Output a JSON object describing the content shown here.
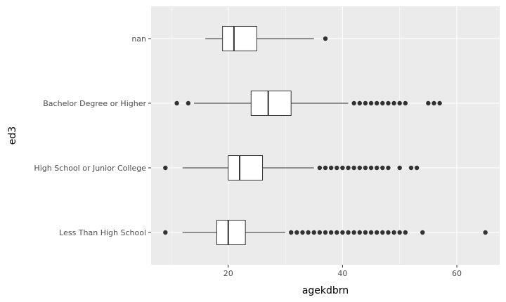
{
  "chart_data": {
    "type": "boxplot",
    "orientation": "horizontal",
    "xlabel": "agekdbrn",
    "ylabel": "ed3",
    "xlim": [
      6.5,
      67.5
    ],
    "x_ticks": [
      20,
      40,
      60
    ],
    "grid": true,
    "categories": [
      "Less Than High School",
      "High School or Junior College",
      "Bachelor Degree or Higher",
      "nan"
    ],
    "boxes": [
      {
        "category": "Less Than High School",
        "whisker_low": 12,
        "q1": 18,
        "median": 20,
        "q3": 23,
        "whisker_high": 30,
        "outliers": [
          9,
          31,
          32,
          33,
          34,
          35,
          36,
          37,
          38,
          39,
          40,
          41,
          42,
          43,
          44,
          45,
          46,
          47,
          48,
          49,
          50,
          51,
          54,
          65
        ]
      },
      {
        "category": "High School or Junior College",
        "whisker_low": 12,
        "q1": 20,
        "median": 22,
        "q3": 26,
        "whisker_high": 35,
        "outliers": [
          9,
          36,
          37,
          38,
          39,
          40,
          41,
          42,
          43,
          44,
          45,
          46,
          47,
          48,
          50,
          52,
          53
        ]
      },
      {
        "category": "Bachelor Degree or Higher",
        "whisker_low": 14,
        "q1": 24,
        "median": 27,
        "q3": 31,
        "whisker_high": 41,
        "outliers": [
          11,
          13,
          42,
          43,
          44,
          45,
          46,
          47,
          48,
          49,
          50,
          51,
          55,
          56,
          57
        ]
      },
      {
        "category": "nan",
        "whisker_low": 16,
        "q1": 19,
        "median": 21,
        "q3": 25,
        "whisker_high": 35,
        "outliers": [
          37
        ]
      }
    ],
    "colors": {
      "panel_background": "#ebebeb",
      "grid_major": "#ffffff",
      "box_fill": "#ffffff",
      "box_stroke": "#333333",
      "outlier": "#333333",
      "tick_text": "#4d4d4d",
      "axis_title": "#000000"
    }
  }
}
